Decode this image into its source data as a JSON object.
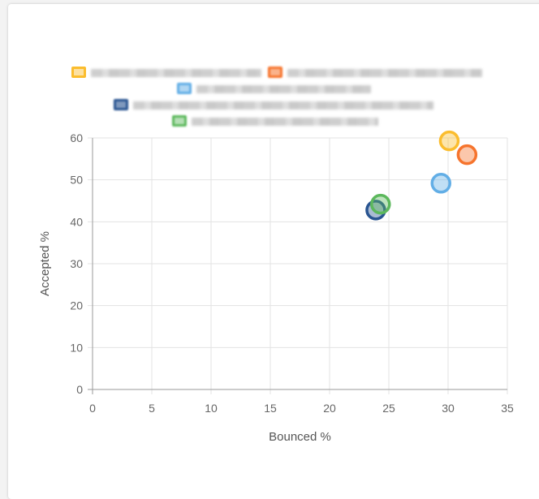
{
  "chart_data": {
    "type": "scatter",
    "xlabel": "Bounced %",
    "ylabel": "Accepted %",
    "xlim": [
      0,
      35
    ],
    "ylim": [
      0,
      60
    ],
    "x_ticks": [
      0,
      5,
      10,
      15,
      20,
      25,
      30,
      35
    ],
    "y_ticks": [
      0,
      10,
      20,
      30,
      40,
      50,
      60
    ],
    "grid": true,
    "legend_position": "top",
    "series": [
      {
        "color": "#fbbd2e",
        "points": [
          {
            "x": 30.1,
            "y": 59.3
          }
        ]
      },
      {
        "color": "#f6742d",
        "points": [
          {
            "x": 31.6,
            "y": 56.0
          }
        ]
      },
      {
        "color": "#62aee6",
        "points": [
          {
            "x": 29.4,
            "y": 49.2
          }
        ]
      },
      {
        "color": "#2a5591",
        "points": [
          {
            "x": 23.9,
            "y": 42.8
          }
        ]
      },
      {
        "color": "#5cb85c",
        "points": [
          {
            "x": 24.3,
            "y": 44.2
          }
        ]
      }
    ]
  }
}
